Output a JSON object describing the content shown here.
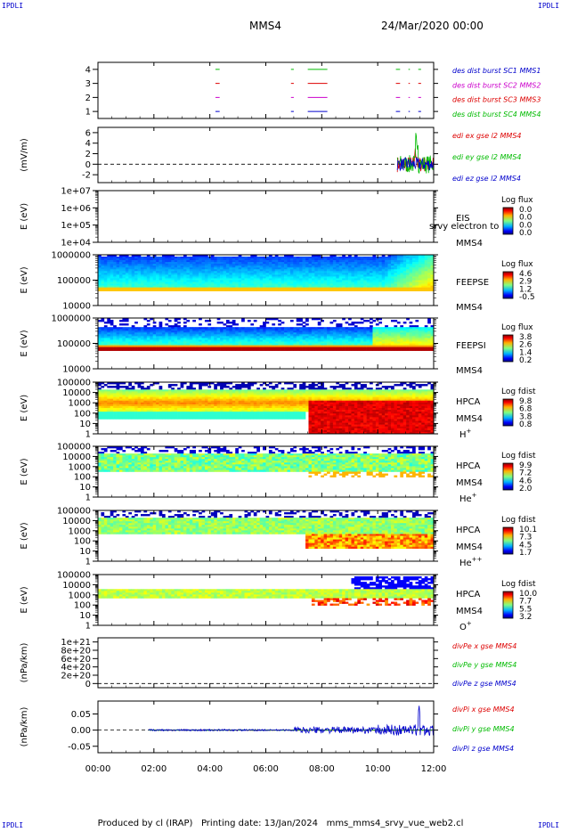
{
  "corners": {
    "tl": "IPDLI",
    "tr": "IPDLI",
    "bl": "IPDLI",
    "br": "IPDLI"
  },
  "header": {
    "spacecraft": "MMS4",
    "date": "24/Mar/2020 00:00"
  },
  "footer": {
    "produced": "Produced by cl (IRAP)",
    "printed": "Printing date: 13/Jan/2024",
    "file": "mms_mms4_srvy_vue_web2.cl"
  },
  "colors": {
    "mms1": "#0000cc",
    "mms2": "#cc00cc",
    "mms3": "#dd0000",
    "mms4": "#00bb00"
  },
  "chart_data": {
    "type": "multi-panel",
    "x_ticks": [
      "00:00",
      "02:00",
      "04:00",
      "06:00",
      "08:00",
      "10:00",
      "12:00"
    ],
    "xlim_hours": [
      0,
      12
    ],
    "panels": [
      {
        "id": "burst",
        "type": "line",
        "yticks": [
          "1",
          "2",
          "3",
          "4"
        ],
        "ylim": [
          0.5,
          4.5
        ],
        "legend": [
          {
            "label": "des dist burst SC1 MMS1",
            "color": "#0000cc"
          },
          {
            "label": "des dist burst SC2 MMS2",
            "color": "#cc00cc"
          },
          {
            "label": "des dist burst SC3 MMS3",
            "color": "#dd0000"
          },
          {
            "label": "des dist burst SC4 MMS4",
            "color": "#00bb00"
          }
        ],
        "intervals_hours": [
          [
            4.2,
            4.35
          ],
          [
            6.9,
            7.0
          ],
          [
            7.5,
            8.2
          ],
          [
            10.65,
            10.8
          ],
          [
            11.1,
            11.15
          ],
          [
            11.45,
            11.55
          ]
        ]
      },
      {
        "id": "edi",
        "type": "line",
        "ylabel": "(mV/m)",
        "yticks": [
          "-2",
          "0",
          "2",
          "4",
          "6"
        ],
        "ylim": [
          -3.5,
          7
        ],
        "legend": [
          {
            "label": "edi ex gse l2 MMS4",
            "color": "#dd0000"
          },
          {
            "label": "edi ey gse l2 MMS4",
            "color": "#00bb00"
          },
          {
            "label": "edi ez gse l2 MMS4",
            "color": "#0000cc"
          }
        ],
        "data_start_hours": 10.7
      },
      {
        "id": "eis",
        "type": "heatmap",
        "ylabel": "E (eV)",
        "yticks": [
          "1e+04",
          "1e+05",
          "1e+06",
          "1e+07"
        ],
        "ylim": [
          10000,
          10000000
        ],
        "label": "EIS",
        "sublabel": "MMS4",
        "overlay": "srvy electron to",
        "colorbar": {
          "title": "Log flux",
          "ticks": [
            "0.0",
            "0.0",
            "0.0",
            "0.0"
          ]
        }
      },
      {
        "id": "feepse",
        "type": "heatmap",
        "ylabel": "E (eV)",
        "yticks": [
          "10000",
          "100000",
          "1000000"
        ],
        "ylim": [
          10000,
          1000000
        ],
        "label": "FEEPSE",
        "sublabel": "MMS4",
        "colorbar": {
          "title": "Log flux",
          "ticks": [
            "4.6",
            "2.9",
            "1.2",
            "-0.5"
          ]
        }
      },
      {
        "id": "feepsi",
        "type": "heatmap",
        "ylabel": "E (eV)",
        "yticks": [
          "10000",
          "100000",
          "1000000"
        ],
        "ylim": [
          10000,
          1000000
        ],
        "label": "FEEPSI",
        "sublabel": "MMS4",
        "colorbar": {
          "title": "Log flux",
          "ticks": [
            "3.8",
            "2.6",
            "1.4",
            "0.2"
          ]
        }
      },
      {
        "id": "hpca_h",
        "type": "heatmap",
        "ylabel": "E (eV)",
        "yticks": [
          "1",
          "10",
          "100",
          "1000",
          "10000",
          "100000"
        ],
        "ylim": [
          1,
          100000
        ],
        "label": "HPCA",
        "sublabel": "MMS4",
        "species": "H",
        "charge": "+",
        "colorbar": {
          "title": "Log fdist",
          "ticks": [
            "9.8",
            "6.8",
            "3.8",
            "0.8"
          ]
        }
      },
      {
        "id": "hpca_he",
        "type": "heatmap",
        "ylabel": "E (eV)",
        "yticks": [
          "1",
          "10",
          "100",
          "1000",
          "10000",
          "100000"
        ],
        "ylim": [
          1,
          100000
        ],
        "label": "HPCA",
        "sublabel": "MMS4",
        "species": "He",
        "charge": "+",
        "colorbar": {
          "title": "Log fdist",
          "ticks": [
            "9.9",
            "7.2",
            "4.6",
            "2.0"
          ]
        }
      },
      {
        "id": "hpca_hepp",
        "type": "heatmap",
        "ylabel": "E (eV)",
        "yticks": [
          "1",
          "10",
          "100",
          "1000",
          "10000",
          "100000"
        ],
        "ylim": [
          1,
          100000
        ],
        "label": "HPCA",
        "sublabel": "MMS4",
        "species": "He",
        "charge": "++",
        "colorbar": {
          "title": "Log fdist",
          "ticks": [
            "10.1",
            "7.3",
            "4.5",
            "1.7"
          ]
        }
      },
      {
        "id": "hpca_o",
        "type": "heatmap",
        "ylabel": "E (eV)",
        "yticks": [
          "1",
          "10",
          "100",
          "1000",
          "10000",
          "100000"
        ],
        "ylim": [
          1,
          100000
        ],
        "label": "HPCA",
        "sublabel": "MMS4",
        "species": "O",
        "charge": "+",
        "colorbar": {
          "title": "Log fdist",
          "ticks": [
            "10.0",
            "7.7",
            "5.5",
            "3.2"
          ]
        }
      },
      {
        "id": "divpe",
        "type": "line",
        "ylabel": "(nPa/km)",
        "yticks": [
          "0",
          "2e+20",
          "4e+20",
          "6e+20",
          "8e+20",
          "1e+21"
        ],
        "ylim": [
          -1e+20,
          1.1e+21
        ],
        "legend": [
          {
            "label": "divPe x gse MMS4",
            "color": "#dd0000"
          },
          {
            "label": "divPe y gse MMS4",
            "color": "#00bb00"
          },
          {
            "label": "divPe z gse MMS4",
            "color": "#0000cc"
          }
        ]
      },
      {
        "id": "divpi",
        "type": "line",
        "ylabel": "(nPa/km)",
        "yticks": [
          "-0.05",
          "0.00",
          "0.05"
        ],
        "ylim": [
          -0.07,
          0.09
        ],
        "legend": [
          {
            "label": "divPi x gse MMS4",
            "color": "#dd0000"
          },
          {
            "label": "divPi y gse MMS4",
            "color": "#00bb00"
          },
          {
            "label": "divPi z gse MMS4",
            "color": "#0000cc"
          }
        ]
      }
    ]
  }
}
